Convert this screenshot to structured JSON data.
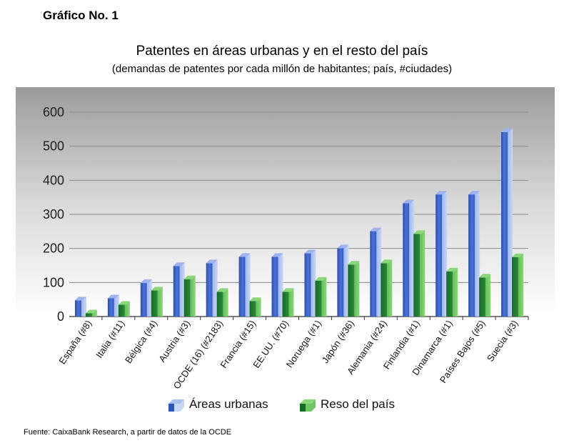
{
  "header": {
    "figure_label": "Gráfico No. 1",
    "title": "Patentes en áreas urbanas y en el resto del país",
    "subtitle": "(demandas de patentes por cada millón de habitantes; país, #ciudades)"
  },
  "footer": {
    "source": "Fuente: CaixaBank Research, a partir de datos de la OCDE"
  },
  "colors": {
    "urban": "#3f66c6",
    "rest": "#2e8f3e",
    "plot_bg_top": "#9b9b9b",
    "plot_bg_bottom": "#ffffff",
    "grid": "#8a8a8a"
  },
  "chart_data": {
    "type": "bar",
    "title": "Patentes en áreas urbanas y en el resto del país",
    "subtitle": "(demandas de patentes por cada millón de habitantes; país, #ciudades)",
    "xlabel": "",
    "ylabel": "",
    "ylim": [
      0,
      600
    ],
    "yticks": [
      0,
      100,
      200,
      300,
      400,
      500,
      600
    ],
    "grid": true,
    "legend_position": "bottom",
    "categories": [
      "España (#8)",
      "Italia (#11)",
      "Bélgica (#4)",
      "Austria (#3)",
      "OCDE (16) (#2183)",
      "Francia (#15)",
      "EE.UU. (#70)",
      "Noruega (#1)",
      "Japón (#36)",
      "Alemania (#24)",
      "Finlandia (#1)",
      "Dinamarca (#1)",
      "Países Bajos (#5)",
      "Suecia (#3)"
    ],
    "series": [
      {
        "name": "Áreas urbanas",
        "values": [
          58,
          64,
          109,
          159,
          167,
          186,
          186,
          196,
          211,
          261,
          343,
          369,
          369,
          552
        ]
      },
      {
        "name": "Reso del país",
        "values": [
          20,
          45,
          87,
          120,
          83,
          56,
          83,
          116,
          163,
          167,
          253,
          143,
          125,
          185
        ]
      }
    ]
  }
}
